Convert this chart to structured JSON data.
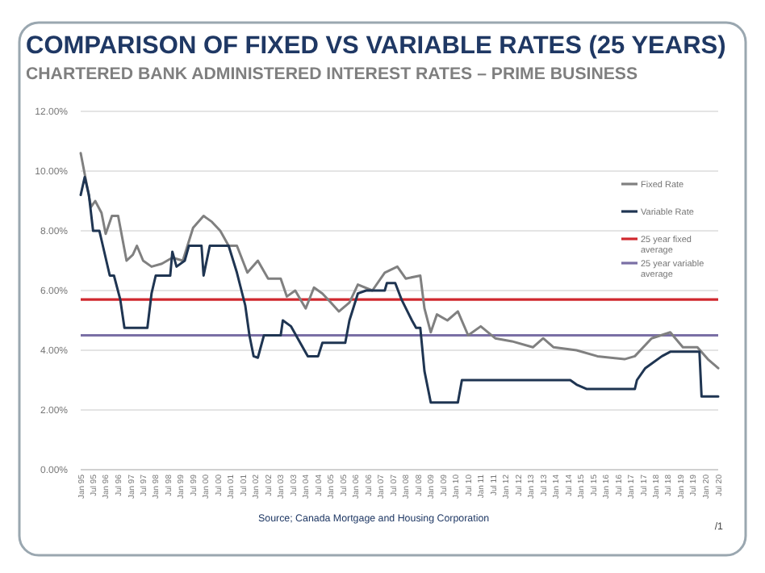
{
  "chart_data": {
    "type": "line",
    "title": "COMPARISON OF FIXED VS VARIABLE RATES (25  YEARS)",
    "subtitle": "CHARTERED BANK ADMINISTERED INTEREST RATES – PRIME  BUSINESS",
    "annotations": [
      "Source; Canada Mortgage and Housing Corporation",
      "/1"
    ],
    "xlim": [
      "1995-01",
      "2020-07"
    ],
    "xticks": [
      {
        "value": "1995-01",
        "label": "Jan 95"
      },
      {
        "value": "1995-07",
        "label": "Jul 95"
      },
      {
        "value": "1996-01",
        "label": "Jan 96"
      },
      {
        "value": "1996-07",
        "label": "Jul 96"
      },
      {
        "value": "1997-01",
        "label": "Jan 97"
      },
      {
        "value": "1997-07",
        "label": "Jul 97"
      },
      {
        "value": "1998-01",
        "label": "Jan 98"
      },
      {
        "value": "1998-07",
        "label": "Jul 98"
      },
      {
        "value": "1999-01",
        "label": "Jan 99"
      },
      {
        "value": "1999-07",
        "label": "Jul 99"
      },
      {
        "value": "2000-01",
        "label": "Jan 00"
      },
      {
        "value": "2000-07",
        "label": "Jul 00"
      },
      {
        "value": "2001-01",
        "label": "Jan 01"
      },
      {
        "value": "2001-07",
        "label": "Jul 01"
      },
      {
        "value": "2002-01",
        "label": "Jan 02"
      },
      {
        "value": "2002-07",
        "label": "Jul 02"
      },
      {
        "value": "2003-01",
        "label": "Jan 03"
      },
      {
        "value": "2003-07",
        "label": "Jul 03"
      },
      {
        "value": "2004-01",
        "label": "Jan 04"
      },
      {
        "value": "2004-07",
        "label": "Jul 04"
      },
      {
        "value": "2005-01",
        "label": "Jan 05"
      },
      {
        "value": "2005-07",
        "label": "Jul 05"
      },
      {
        "value": "2006-01",
        "label": "Jan 06"
      },
      {
        "value": "2006-07",
        "label": "Jul 06"
      },
      {
        "value": "2007-01",
        "label": "Jan 07"
      },
      {
        "value": "2007-07",
        "label": "Jul 07"
      },
      {
        "value": "2008-01",
        "label": "Jan 08"
      },
      {
        "value": "2008-07",
        "label": "Jul 08"
      },
      {
        "value": "2009-01",
        "label": "Jan 09"
      },
      {
        "value": "2009-07",
        "label": "Jul 09"
      },
      {
        "value": "2010-01",
        "label": "Jan 10"
      },
      {
        "value": "2010-07",
        "label": "Jul 10"
      },
      {
        "value": "2011-01",
        "label": "Jan 11"
      },
      {
        "value": "2011-07",
        "label": "Jul 11"
      },
      {
        "value": "2012-01",
        "label": "Jan 12"
      },
      {
        "value": "2012-07",
        "label": "Jul 12"
      },
      {
        "value": "2013-01",
        "label": "Jan 13"
      },
      {
        "value": "2013-07",
        "label": "Jul 13"
      },
      {
        "value": "2014-01",
        "label": "Jan 14"
      },
      {
        "value": "2014-07",
        "label": "Jul 14"
      },
      {
        "value": "2015-01",
        "label": "Jan 15"
      },
      {
        "value": "2015-07",
        "label": "Jul 15"
      },
      {
        "value": "2016-01",
        "label": "Jan 16"
      },
      {
        "value": "2016-07",
        "label": "Jul 16"
      },
      {
        "value": "2017-01",
        "label": "Jan 17"
      },
      {
        "value": "2017-07",
        "label": "Jul 17"
      },
      {
        "value": "2018-01",
        "label": "Jan 18"
      },
      {
        "value": "2018-07",
        "label": "Jul 18"
      },
      {
        "value": "2019-01",
        "label": "Jan 19"
      },
      {
        "value": "2019-07",
        "label": "Jul 19"
      },
      {
        "value": "2020-01",
        "label": "Jan 20"
      },
      {
        "value": "2020-07",
        "label": "Jul 20"
      }
    ],
    "ylim": [
      0,
      12
    ],
    "yticks": [
      {
        "value": 0,
        "label": "0.00%"
      },
      {
        "value": 2,
        "label": "2.00%"
      },
      {
        "value": 4,
        "label": "4.00%"
      },
      {
        "value": 6,
        "label": "6.00%"
      },
      {
        "value": 8,
        "label": "8.00%"
      },
      {
        "value": 10,
        "label": "10.00%"
      },
      {
        "value": 12,
        "label": "12.00%"
      }
    ],
    "grid": "y",
    "legend": "top right",
    "marker": "none",
    "line_style": "solid",
    "series": [
      {
        "name": "Fixed Rate",
        "color": "#808080",
        "x": [
          "1995-01",
          "1995-03",
          "1995-06",
          "1995-08",
          "1995-11",
          "1996-01",
          "1996-04",
          "1996-07",
          "1996-11",
          "1997-02",
          "1997-04",
          "1997-07",
          "1997-11",
          "1998-04",
          "1998-09",
          "1999-02",
          "1999-07",
          "1999-12",
          "2000-04",
          "2000-08",
          "2000-12",
          "2001-04",
          "2001-09",
          "2002-02",
          "2002-07",
          "2003-01",
          "2003-04",
          "2003-08",
          "2004-01",
          "2004-05",
          "2004-09",
          "2005-01",
          "2005-05",
          "2005-10",
          "2006-02",
          "2006-09",
          "2007-03",
          "2007-09",
          "2008-01",
          "2008-08",
          "2008-10",
          "2009-01",
          "2009-04",
          "2009-09",
          "2010-02",
          "2010-07",
          "2011-01",
          "2011-08",
          "2012-04",
          "2013-02",
          "2013-07",
          "2013-12",
          "2014-11",
          "2015-09",
          "2016-10",
          "2017-03",
          "2017-11",
          "2018-08",
          "2019-02",
          "2019-09",
          "2020-02",
          "2020-07"
        ],
        "values": [
          10.6,
          9.9,
          8.8,
          9.0,
          8.6,
          7.9,
          8.5,
          8.5,
          7.0,
          7.2,
          7.5,
          7.0,
          6.8,
          6.9,
          7.1,
          7.0,
          8.1,
          8.5,
          8.3,
          8.0,
          7.5,
          7.5,
          6.6,
          7.0,
          6.4,
          6.4,
          5.8,
          6.0,
          5.4,
          6.1,
          5.9,
          5.6,
          5.3,
          5.6,
          6.2,
          6.0,
          6.6,
          6.8,
          6.4,
          6.5,
          5.4,
          4.6,
          5.2,
          5.0,
          5.3,
          4.5,
          4.8,
          4.4,
          4.3,
          4.1,
          4.4,
          4.1,
          4.0,
          3.8,
          3.7,
          3.8,
          4.4,
          4.6,
          4.1,
          4.1,
          3.7,
          3.4
        ]
      },
      {
        "name": "Variable Rate",
        "color": "#1f3552",
        "x": [
          "1995-01",
          "1995-03",
          "1995-05",
          "1995-07",
          "1995-10",
          "1996-03",
          "1996-05",
          "1996-08",
          "1996-10",
          "1997-09",
          "1997-11",
          "1998-01",
          "1998-08",
          "1998-09",
          "1998-11",
          "1999-03",
          "1999-05",
          "1999-11",
          "1999-12",
          "2000-03",
          "2000-12",
          "2001-04",
          "2001-08",
          "2001-10",
          "2001-12",
          "2002-02",
          "2002-05",
          "2003-01",
          "2003-02",
          "2003-06",
          "2003-10",
          "2004-02",
          "2004-07",
          "2004-09",
          "2005-08",
          "2005-10",
          "2006-02",
          "2006-06",
          "2007-03",
          "2007-04",
          "2007-08",
          "2007-11",
          "2008-04",
          "2008-06",
          "2008-08",
          "2008-10",
          "2009-01",
          "2010-02",
          "2010-04",
          "2014-08",
          "2014-11",
          "2015-04",
          "2017-03",
          "2017-04",
          "2017-08",
          "2017-12",
          "2018-04",
          "2018-08",
          "2019-10",
          "2019-11",
          "2020-07"
        ],
        "values": [
          9.2,
          9.8,
          9.2,
          8.0,
          8.0,
          6.5,
          6.5,
          5.7,
          4.75,
          4.75,
          5.9,
          6.5,
          6.5,
          7.3,
          6.8,
          7.0,
          7.5,
          7.5,
          6.5,
          7.5,
          7.5,
          6.6,
          5.5,
          4.5,
          3.8,
          3.75,
          4.5,
          4.5,
          5.0,
          4.8,
          4.3,
          3.8,
          3.8,
          4.25,
          4.25,
          5.0,
          5.9,
          6.0,
          6.0,
          6.25,
          6.25,
          5.7,
          5.0,
          4.75,
          4.75,
          3.3,
          2.25,
          2.25,
          3.0,
          3.0,
          2.85,
          2.7,
          2.7,
          3.0,
          3.4,
          3.6,
          3.8,
          3.95,
          3.95,
          2.45,
          2.45
        ]
      }
    ],
    "ref_lines": [
      {
        "axis": "y",
        "value": 5.7,
        "label": "25 year fixed average",
        "color": "#d0282e"
      },
      {
        "axis": "y",
        "value": 4.5,
        "label": "25 year variable average",
        "color": "#7a6fa5"
      }
    ]
  }
}
